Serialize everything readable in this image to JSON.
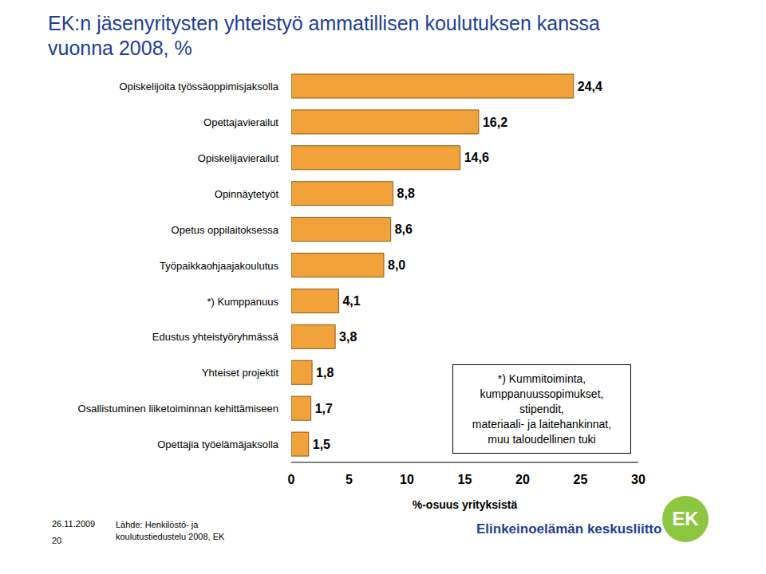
{
  "chart_data": {
    "type": "bar",
    "orientation": "horizontal",
    "title": "EK:n jäsenyritysten yhteistyö ammatillisen koulutuksen kanssa\nvuonna 2008, %",
    "categories": [
      "Opiskelijoita työssäoppimisjaksolla",
      "Opettajavierailut",
      "Opiskelijavierailut",
      "Opinnäytetyöt",
      "Opetus oppilaitoksessa",
      "Työpaikkaohjaajakoulutus",
      "*) Kumppanuus",
      "Edustus yhteistyöryhmässä",
      "Yhteiset projektit",
      "Osallistuminen liiketoiminnan kehittämiseen",
      "Opettajia työelämäjaksolla"
    ],
    "values": [
      24.4,
      16.2,
      14.6,
      8.8,
      8.6,
      8.0,
      4.1,
      3.8,
      1.8,
      1.7,
      1.5
    ],
    "value_labels": [
      "24,4",
      "16,2",
      "14,6",
      "8,8",
      "8,6",
      "8,0",
      "4,1",
      "3,8",
      "1,8",
      "1,7",
      "1,5"
    ],
    "data_labels": true,
    "color": "#f2a23a",
    "grid": false,
    "xlim": [
      0,
      30
    ],
    "xticks": [
      0,
      5,
      10,
      15,
      20,
      25,
      30
    ],
    "x_label": "%-osuus yrityksistä",
    "annotation": [
      "*) Kummitoiminta,",
      "kumppanuussopimukset,",
      "stipendit,",
      "materiaali- ja laitehankinnat,",
      "muu taloudellinen tuki"
    ],
    "date": "26.11.2009",
    "page": "20",
    "source": "Lähde: Henkilöstö- ja koulutustiedustelu 2008, EK",
    "organization": "Elinkeinoelämän keskusliitto",
    "logo": "EK"
  }
}
